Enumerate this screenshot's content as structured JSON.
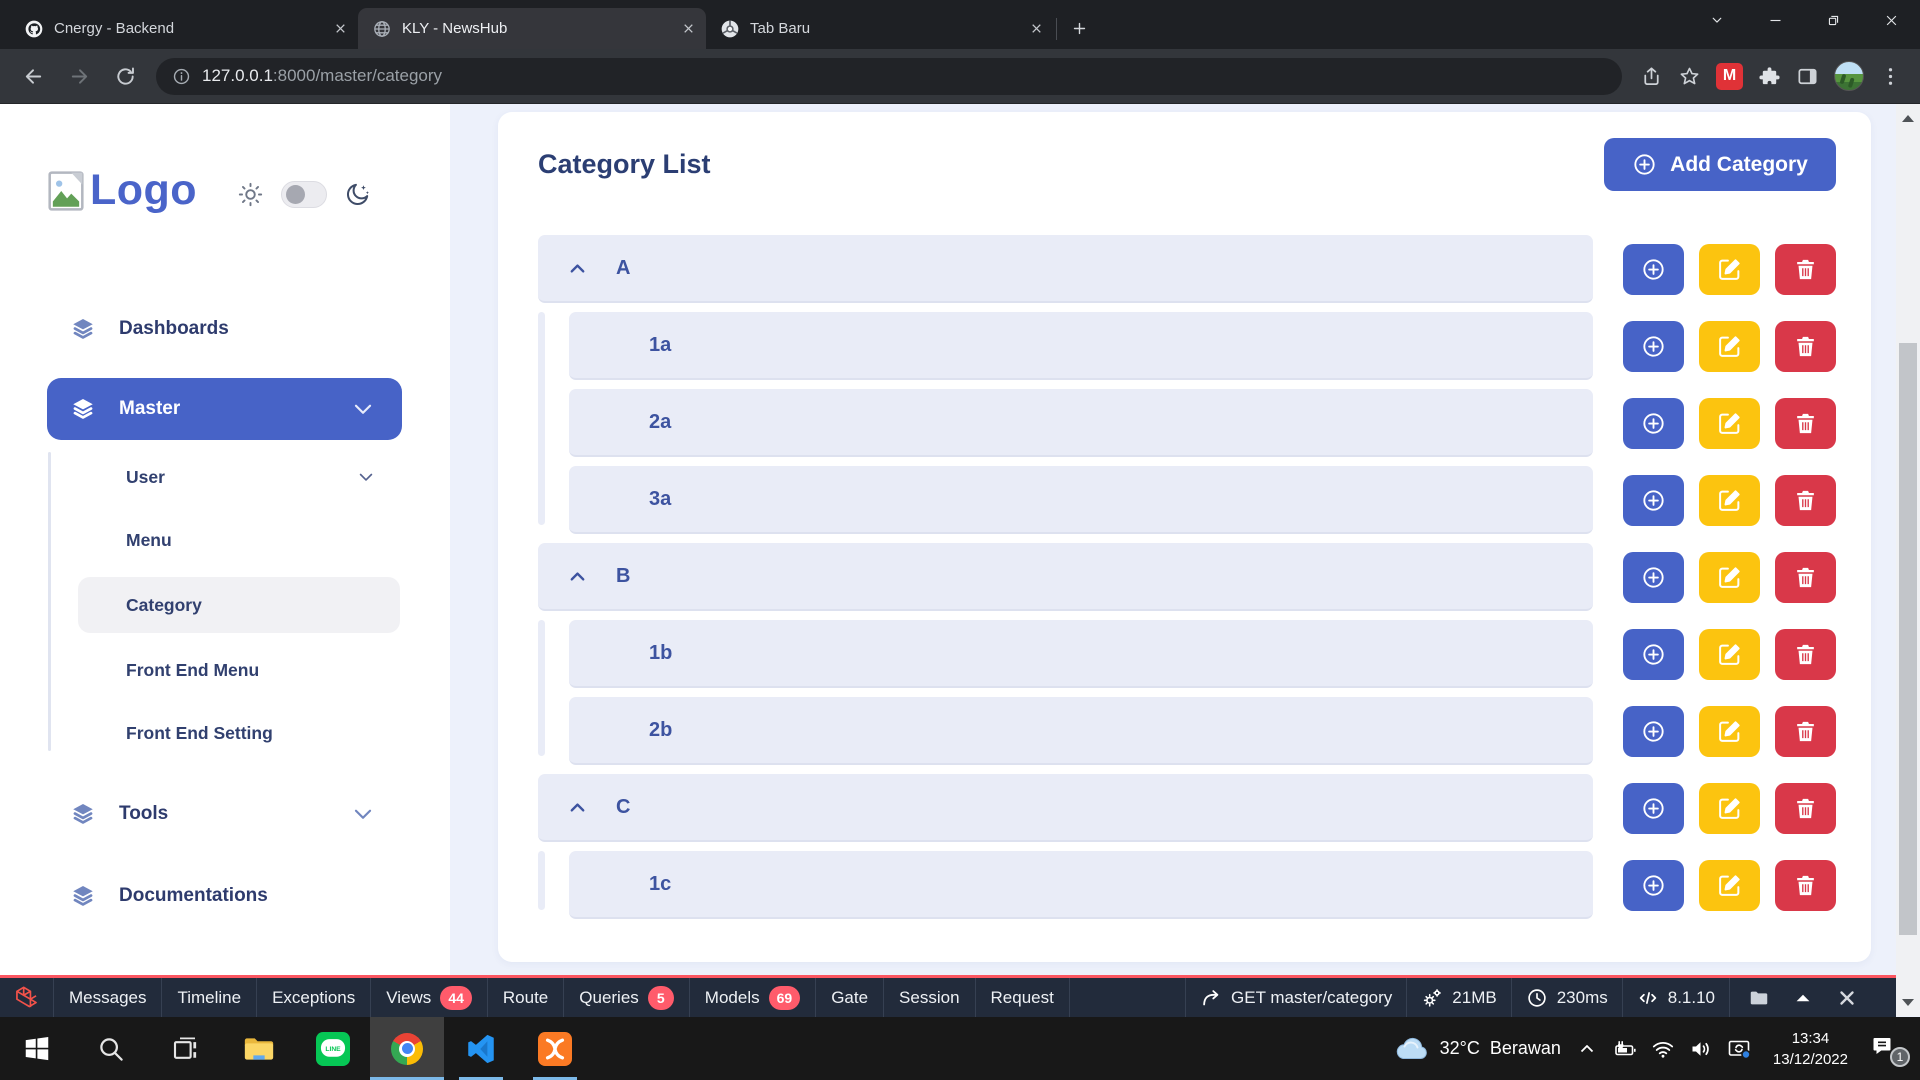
{
  "browser": {
    "tabs": [
      {
        "title": "Cnergy - Backend",
        "favicon": "github",
        "active": false
      },
      {
        "title": "KLY - NewsHub",
        "favicon": "globe",
        "active": true
      },
      {
        "title": "Tab Baru",
        "favicon": "chrome-mono",
        "active": false
      }
    ],
    "url_host": "127.0.0.1",
    "url_path": ":8000/master/category"
  },
  "sidebar": {
    "logo_text": "Logo",
    "items": [
      {
        "label": "Dashboards",
        "level": 0,
        "icon": "layers"
      },
      {
        "label": "Master",
        "level": 0,
        "icon": "layers",
        "active": true,
        "chevron": true
      },
      {
        "label": "User",
        "level": 1,
        "chevron": true
      },
      {
        "label": "Menu",
        "level": 1
      },
      {
        "label": "Category",
        "level": 1,
        "active": true
      },
      {
        "label": "Front End Menu",
        "level": 1
      },
      {
        "label": "Front End Setting",
        "level": 1
      },
      {
        "label": "Tools",
        "level": 0,
        "icon": "layers",
        "chevron": true,
        "cls": "tools-item"
      },
      {
        "label": "Documentations",
        "level": 0,
        "icon": "layers",
        "cls": "docs-item"
      }
    ]
  },
  "main": {
    "title": "Category List",
    "add_button": "Add Category",
    "categories": [
      {
        "label": "A",
        "children": [
          "1a",
          "2a",
          "3a"
        ]
      },
      {
        "label": "B",
        "children": [
          "1b",
          "2b"
        ]
      },
      {
        "label": "C",
        "children": [
          "1c"
        ]
      }
    ]
  },
  "debugbar": {
    "items": [
      {
        "label": "Messages"
      },
      {
        "label": "Timeline"
      },
      {
        "label": "Exceptions"
      },
      {
        "label": "Views",
        "badge": "44"
      },
      {
        "label": "Route"
      },
      {
        "label": "Queries",
        "badge": "5"
      },
      {
        "label": "Models",
        "badge": "69"
      },
      {
        "label": "Gate"
      },
      {
        "label": "Session"
      },
      {
        "label": "Request"
      }
    ],
    "stats": [
      {
        "icon": "redo-arrow",
        "label": "GET master/category"
      },
      {
        "icon": "gears",
        "label": "21MB"
      },
      {
        "icon": "clock",
        "label": "230ms"
      },
      {
        "icon": "code",
        "label": "8.1.10"
      }
    ]
  },
  "taskbar": {
    "weather_temp": "32°C",
    "weather_cond": "Berawan",
    "time": "13:34",
    "date": "13/12/2022",
    "notification_count": "1"
  },
  "colors": {
    "accent": "#4763c7",
    "edit_yellow": "#fcc40f",
    "delete_red": "#d93849",
    "debugbar_line": "#fb5661",
    "debugbar_badge": "#ff5b6b",
    "row_bg": "#e9ecf7"
  }
}
